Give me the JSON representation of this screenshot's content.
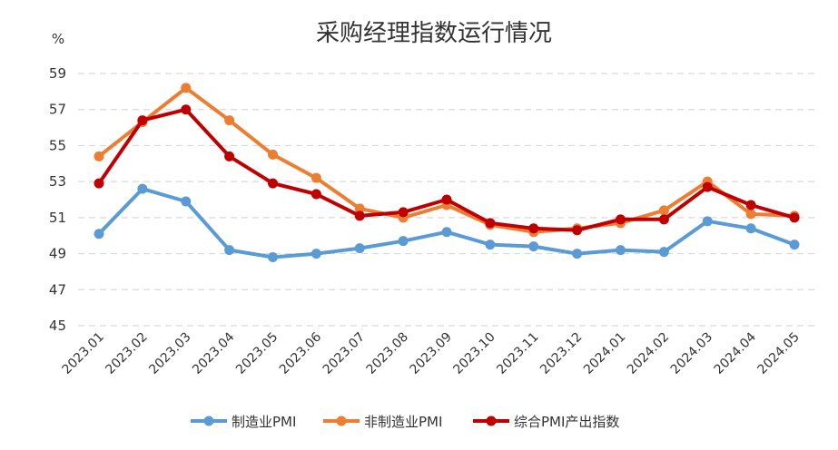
{
  "chart_data": {
    "type": "line",
    "title": "采购经理指数运行情况",
    "unit": "%",
    "ylim": [
      45,
      59
    ],
    "yticks": [
      45,
      47,
      49,
      51,
      53,
      55,
      57,
      59
    ],
    "ytick_labels": [
      "45",
      "47",
      "49",
      "51",
      "53",
      "55",
      "57",
      "59"
    ],
    "grid": true,
    "legend_position": "bottom",
    "categories": [
      "2023.01",
      "2023.02",
      "2023.03",
      "2023.04",
      "2023.05",
      "2023.06",
      "2023.07",
      "2023.08",
      "2023.09",
      "2023.10",
      "2023.11",
      "2023.12",
      "2024.01",
      "2024.02",
      "2024.03",
      "2024.04",
      "2024.05"
    ],
    "series": [
      {
        "name": "制造业PMI",
        "color": "#5b9bd5",
        "values": [
          50.1,
          52.6,
          51.9,
          49.2,
          48.8,
          49.0,
          49.3,
          49.7,
          50.2,
          49.5,
          49.4,
          49.0,
          49.2,
          49.1,
          50.8,
          50.4,
          49.5
        ]
      },
      {
        "name": "非制造业PMI",
        "color": "#ed7d31",
        "values": [
          54.4,
          56.3,
          58.2,
          56.4,
          54.5,
          53.2,
          51.5,
          51.0,
          51.7,
          50.6,
          50.2,
          50.4,
          50.7,
          51.4,
          53.0,
          51.2,
          51.1
        ]
      },
      {
        "name": "综合PMI产出指数",
        "color": "#c00000",
        "values": [
          52.9,
          56.4,
          57.0,
          54.4,
          52.9,
          52.3,
          51.1,
          51.3,
          52.0,
          50.7,
          50.4,
          50.3,
          50.9,
          50.9,
          52.7,
          51.7,
          51.0
        ]
      }
    ]
  }
}
